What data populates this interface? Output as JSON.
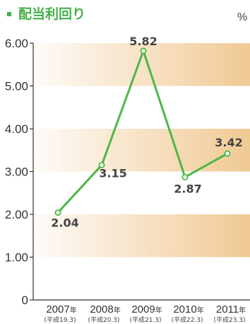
{
  "title": "配当利回り",
  "unit": "%",
  "colors": {
    "accent": "#46b04a",
    "line": "#4db848",
    "band": "#f2cf9f",
    "axis": "#333333"
  },
  "chart_data": {
    "type": "line",
    "title": "配当利回り",
    "unit": "%",
    "categories": [
      "2007年",
      "2008年",
      "2009年",
      "2010年",
      "2011年"
    ],
    "category_years": [
      "2007",
      "2008",
      "2009",
      "2010",
      "2011"
    ],
    "category_suffix": "年",
    "category_sublabels": [
      "(平成19.3)",
      "(平成20.3)",
      "(平成21.3)",
      "(平成22.3)",
      "(平成23.3)"
    ],
    "series": [
      {
        "values": [
          2.04,
          3.15,
          5.82,
          2.87,
          3.42
        ],
        "labels": [
          "2.04",
          "3.15",
          "5.82",
          "2.87",
          "3.42"
        ],
        "color": "#4db848"
      }
    ],
    "ylim": [
      0,
      6
    ],
    "yticks": [
      "0",
      "1.00",
      "2.00",
      "3.00",
      "4.00",
      "5.00",
      "6.00"
    ],
    "grid": "alternating horizontal bands"
  }
}
